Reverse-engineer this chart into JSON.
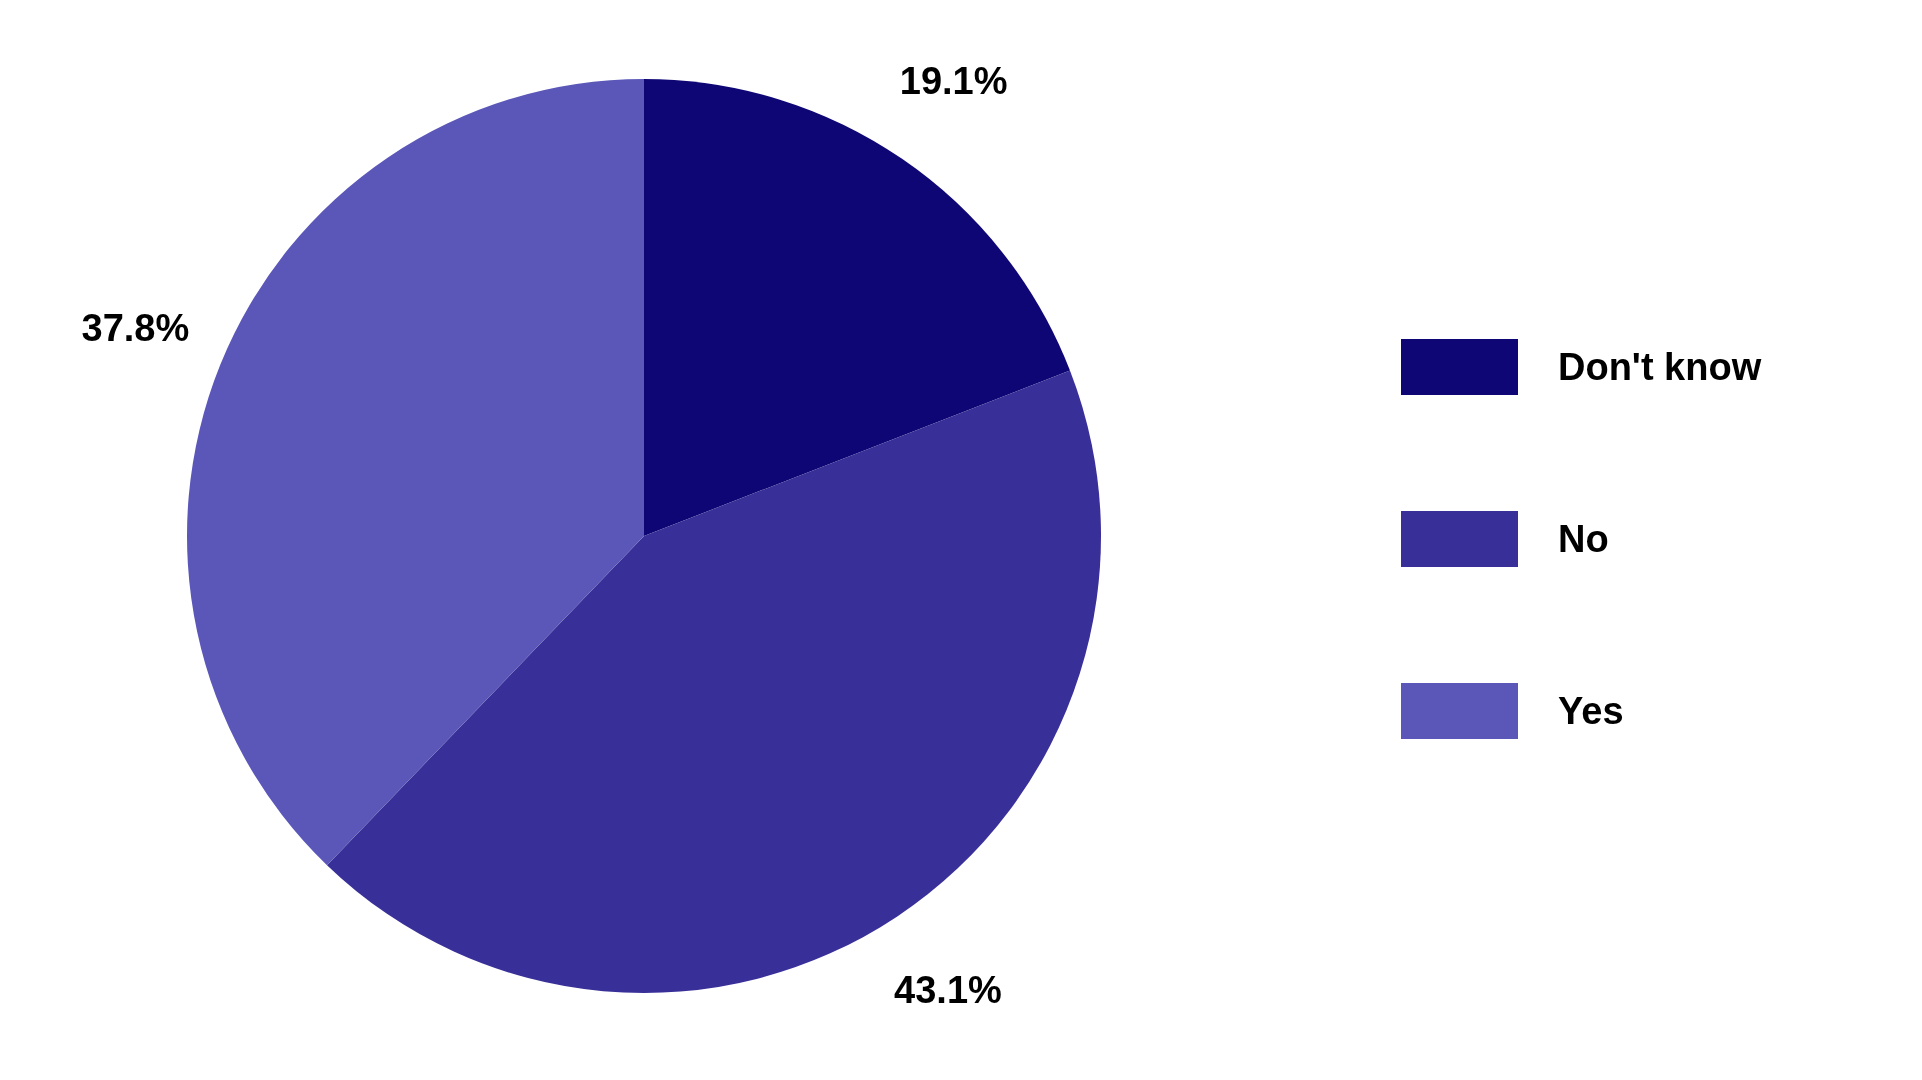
{
  "chart_data": {
    "type": "pie",
    "categories": [
      "Don't know",
      "No",
      "Yes"
    ],
    "values": [
      19.1,
      43.1,
      37.8
    ],
    "colors": [
      "#0e0674",
      "#382f98",
      "#5a57b9"
    ],
    "value_labels": [
      "19.1%",
      "43.1%",
      "37.8%"
    ],
    "legend": "right"
  }
}
